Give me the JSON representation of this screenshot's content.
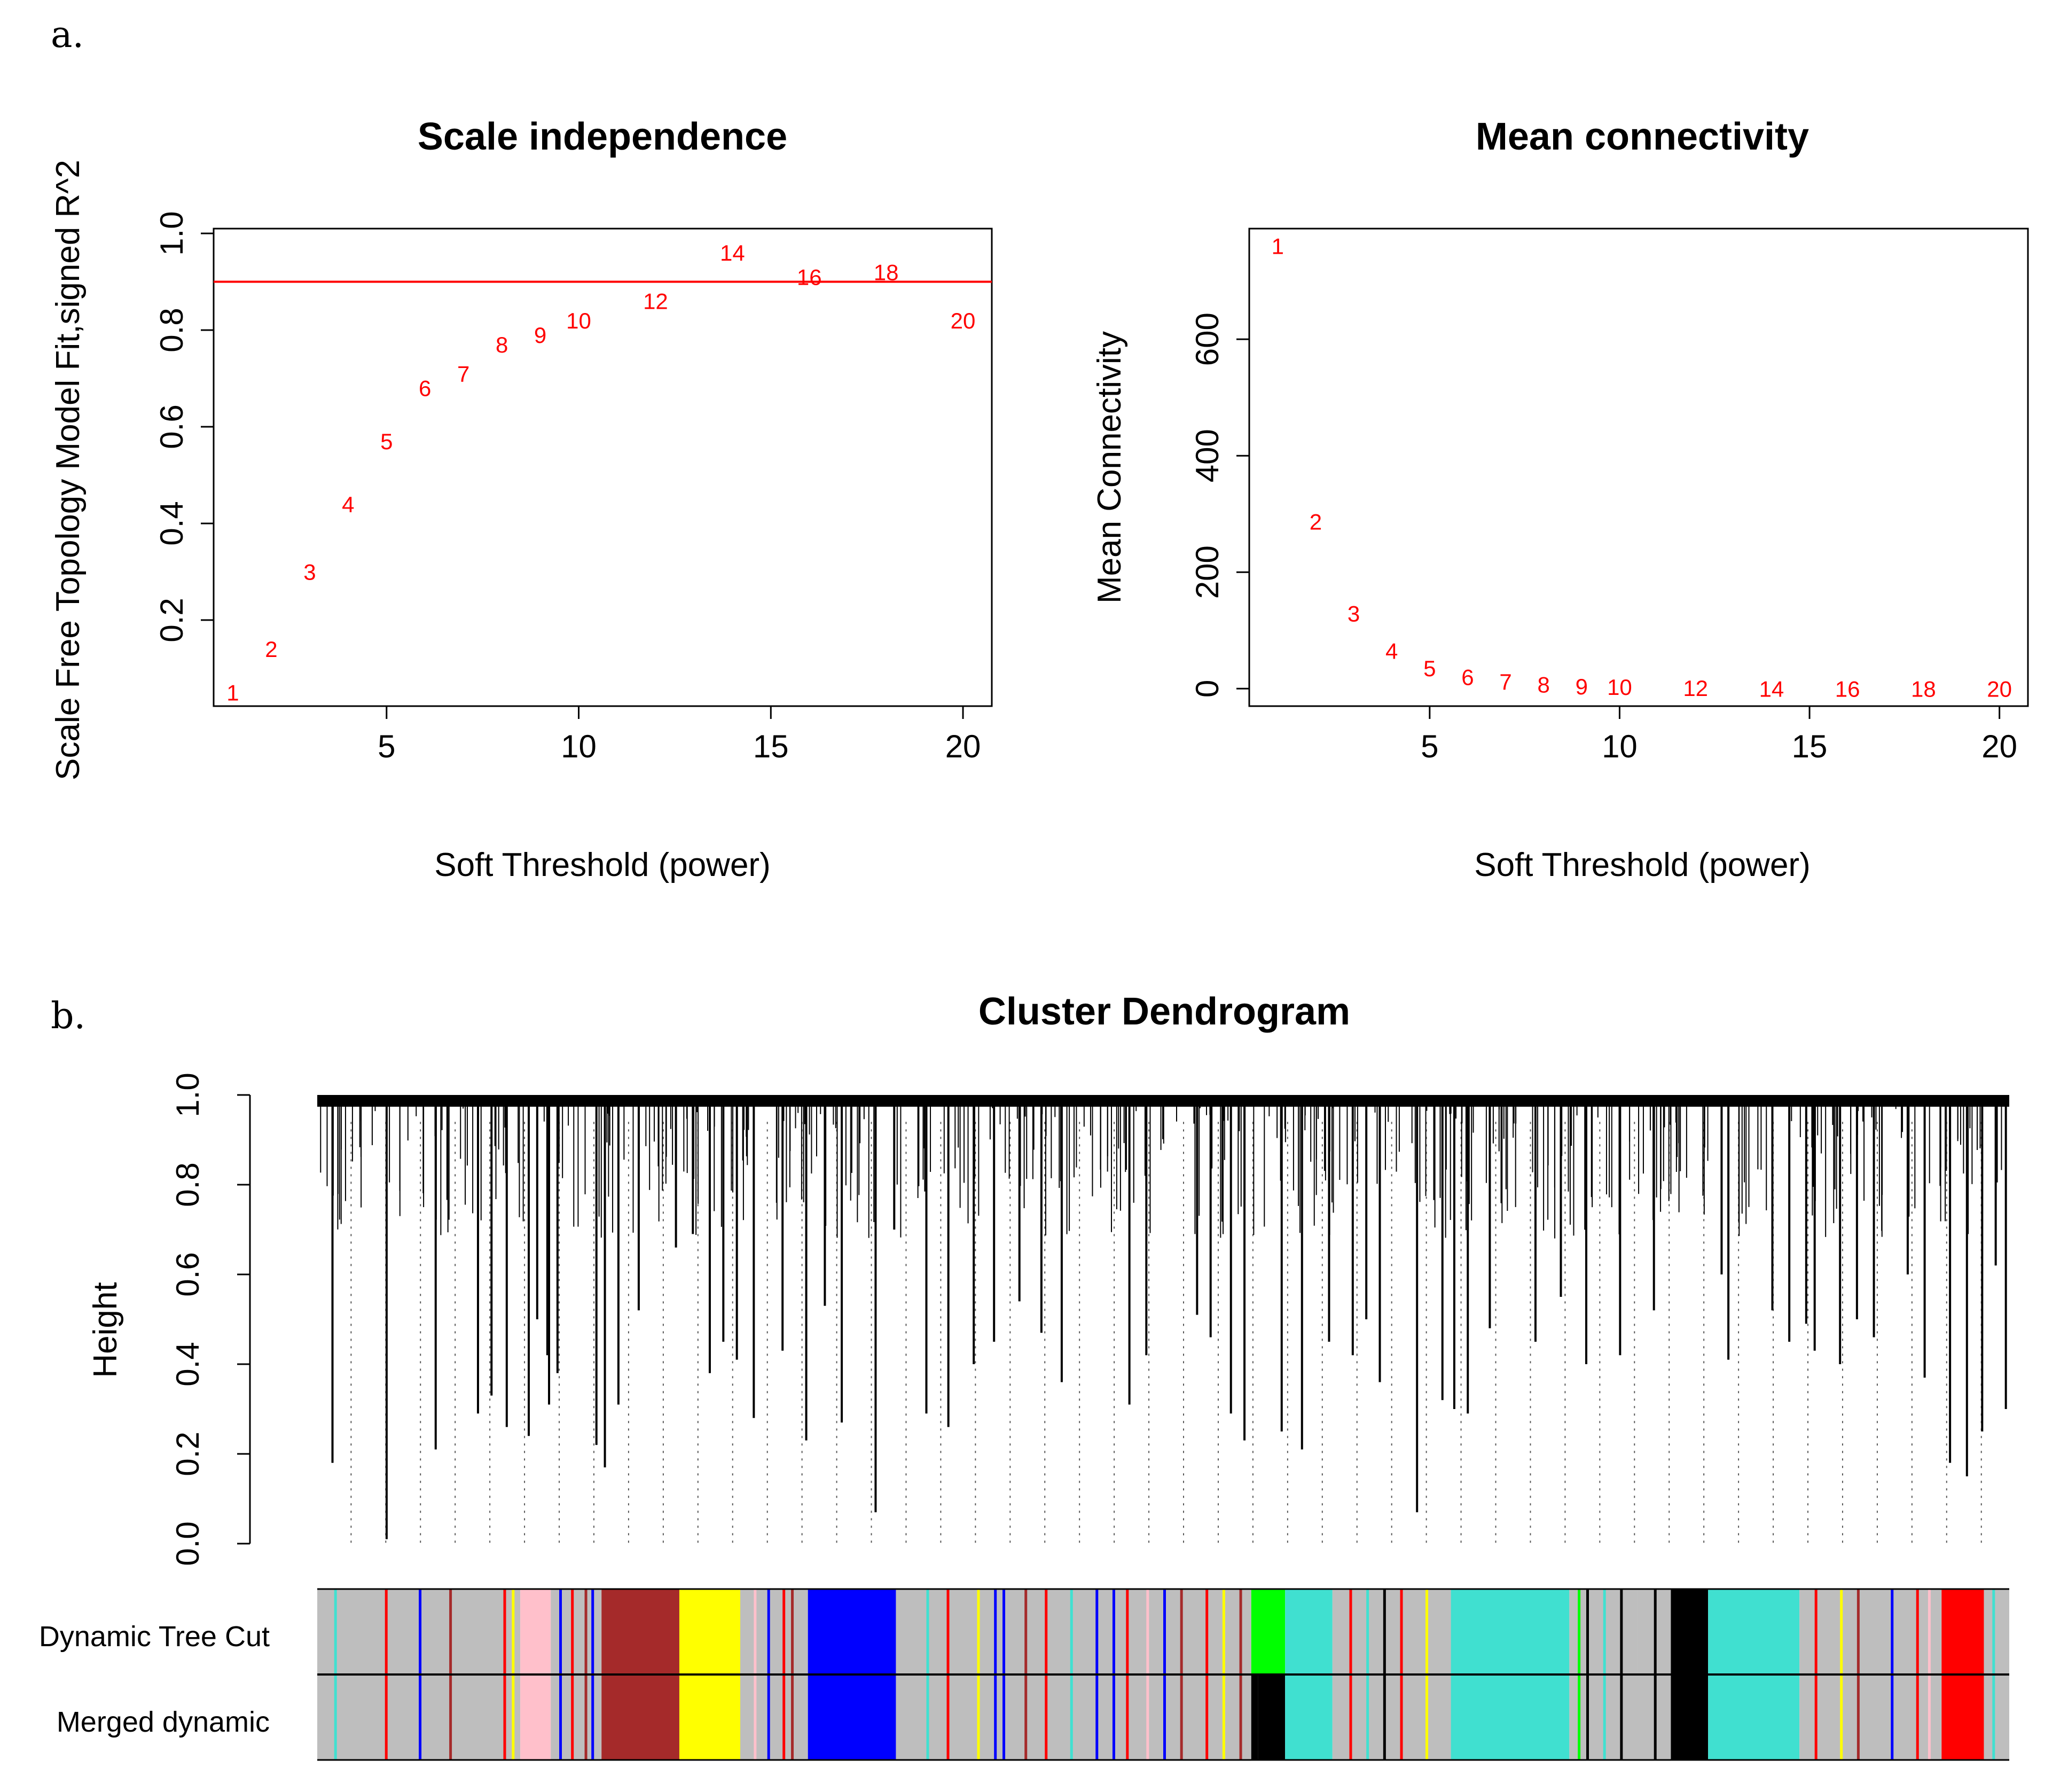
{
  "panel_labels": {
    "a": "a.",
    "b": "b."
  },
  "colors": {
    "axis": "#000000",
    "point_label": "#ff0000",
    "threshold_line": "#ff0000",
    "module_grey": "#bebebe",
    "module_pink": "#ffc0cb",
    "module_brown": "#a52a2a",
    "module_yellow": "#ffff00",
    "module_blue": "#0000ff",
    "module_green": "#00ff00",
    "module_turquoise": "#40e0d0",
    "module_black": "#000000",
    "module_red": "#ff0000"
  },
  "chart_data": [
    {
      "type": "scatter",
      "title": "Scale independence",
      "xlabel": "Soft Threshold (power)",
      "ylabel": "Scale Free Topology Model Fit,signed R^2",
      "xlim": [
        0.5,
        20.75
      ],
      "ylim": [
        0.022,
        1.01
      ],
      "xticks": [
        "5",
        "10",
        "15",
        "20"
      ],
      "yticks": [
        "0.2",
        "0.4",
        "0.6",
        "0.8",
        "1.0"
      ],
      "reference_line": {
        "y": 0.9,
        "color": "#ff0000"
      },
      "points": [
        {
          "x": 1,
          "y": 0.05,
          "label": "1"
        },
        {
          "x": 2,
          "y": 0.14,
          "label": "2"
        },
        {
          "x": 3,
          "y": 0.3,
          "label": "3"
        },
        {
          "x": 4,
          "y": 0.44,
          "label": "4"
        },
        {
          "x": 5,
          "y": 0.57,
          "label": "5"
        },
        {
          "x": 6,
          "y": 0.68,
          "label": "6"
        },
        {
          "x": 7,
          "y": 0.71,
          "label": "7"
        },
        {
          "x": 8,
          "y": 0.77,
          "label": "8"
        },
        {
          "x": 9,
          "y": 0.79,
          "label": "9"
        },
        {
          "x": 10,
          "y": 0.82,
          "label": "10"
        },
        {
          "x": 12,
          "y": 0.86,
          "label": "12"
        },
        {
          "x": 14,
          "y": 0.96,
          "label": "14"
        },
        {
          "x": 16,
          "y": 0.91,
          "label": "16"
        },
        {
          "x": 18,
          "y": 0.92,
          "label": "18"
        },
        {
          "x": 20,
          "y": 0.82,
          "label": "20"
        }
      ]
    },
    {
      "type": "scatter",
      "title": "Mean connectivity",
      "xlabel": "Soft Threshold (power)",
      "ylabel": "Mean Connectivity",
      "xlim": [
        0.25,
        20.75
      ],
      "ylim": [
        -30,
        790
      ],
      "xticks": [
        "5",
        "10",
        "15",
        "20"
      ],
      "yticks": [
        "0",
        "200",
        "400",
        "600"
      ],
      "points": [
        {
          "x": 1,
          "y": 760,
          "label": "1"
        },
        {
          "x": 2,
          "y": 287,
          "label": "2"
        },
        {
          "x": 3,
          "y": 129,
          "label": "3"
        },
        {
          "x": 4,
          "y": 65,
          "label": "4"
        },
        {
          "x": 5,
          "y": 35,
          "label": "5"
        },
        {
          "x": 6,
          "y": 20,
          "label": "6"
        },
        {
          "x": 7,
          "y": 12,
          "label": "7"
        },
        {
          "x": 8,
          "y": 7,
          "label": "8"
        },
        {
          "x": 9,
          "y": 4,
          "label": "9"
        },
        {
          "x": 10,
          "y": 3,
          "label": "10"
        },
        {
          "x": 12,
          "y": 1,
          "label": "12"
        },
        {
          "x": 14,
          "y": 0,
          "label": "14"
        },
        {
          "x": 16,
          "y": 0,
          "label": "16"
        },
        {
          "x": 18,
          "y": 0,
          "label": "18"
        },
        {
          "x": 20,
          "y": 0,
          "label": "20"
        }
      ]
    },
    {
      "type": "dendrogram",
      "title": "Cluster Dendrogram",
      "ylabel": "Height",
      "ylim": [
        0,
        1
      ],
      "yticks": [
        "0.0",
        "0.2",
        "0.4",
        "0.6",
        "0.8",
        "1.0"
      ],
      "color_rows": [
        "Dynamic Tree Cut",
        "Merged dynamic"
      ],
      "branches": [
        {
          "x": 0.009,
          "h": 0.18
        },
        {
          "x": 0.041,
          "h": 0.01
        },
        {
          "x": 0.07,
          "h": 0.21
        },
        {
          "x": 0.095,
          "h": 0.29
        },
        {
          "x": 0.103,
          "h": 0.33
        },
        {
          "x": 0.112,
          "h": 0.26
        },
        {
          "x": 0.125,
          "h": 0.24
        },
        {
          "x": 0.137,
          "h": 0.31
        },
        {
          "x": 0.13,
          "h": 0.5
        },
        {
          "x": 0.136,
          "h": 0.42
        },
        {
          "x": 0.142,
          "h": 0.38
        },
        {
          "x": 0.165,
          "h": 0.22
        },
        {
          "x": 0.17,
          "h": 0.17
        },
        {
          "x": 0.178,
          "h": 0.31
        },
        {
          "x": 0.19,
          "h": 0.52
        },
        {
          "x": 0.212,
          "h": 0.66
        },
        {
          "x": 0.222,
          "h": 0.69
        },
        {
          "x": 0.232,
          "h": 0.38
        },
        {
          "x": 0.24,
          "h": 0.45
        },
        {
          "x": 0.248,
          "h": 0.41
        },
        {
          "x": 0.258,
          "h": 0.28
        },
        {
          "x": 0.275,
          "h": 0.43
        },
        {
          "x": 0.289,
          "h": 0.23
        },
        {
          "x": 0.3,
          "h": 0.53
        },
        {
          "x": 0.31,
          "h": 0.27
        },
        {
          "x": 0.33,
          "h": 0.07
        },
        {
          "x": 0.341,
          "h": 0.7
        },
        {
          "x": 0.36,
          "h": 0.29
        },
        {
          "x": 0.373,
          "h": 0.26
        },
        {
          "x": 0.388,
          "h": 0.4
        },
        {
          "x": 0.4,
          "h": 0.45
        },
        {
          "x": 0.415,
          "h": 0.54
        },
        {
          "x": 0.428,
          "h": 0.47
        },
        {
          "x": 0.44,
          "h": 0.36
        },
        {
          "x": 0.48,
          "h": 0.31
        },
        {
          "x": 0.49,
          "h": 0.42
        },
        {
          "x": 0.52,
          "h": 0.51
        },
        {
          "x": 0.528,
          "h": 0.46
        },
        {
          "x": 0.54,
          "h": 0.29
        },
        {
          "x": 0.548,
          "h": 0.23
        },
        {
          "x": 0.57,
          "h": 0.25
        },
        {
          "x": 0.582,
          "h": 0.21
        },
        {
          "x": 0.598,
          "h": 0.45
        },
        {
          "x": 0.612,
          "h": 0.42
        },
        {
          "x": 0.62,
          "h": 0.5
        },
        {
          "x": 0.628,
          "h": 0.36
        },
        {
          "x": 0.65,
          "h": 0.07
        },
        {
          "x": 0.665,
          "h": 0.32
        },
        {
          "x": 0.672,
          "h": 0.3
        },
        {
          "x": 0.68,
          "h": 0.29
        },
        {
          "x": 0.693,
          "h": 0.48
        },
        {
          "x": 0.72,
          "h": 0.45
        },
        {
          "x": 0.735,
          "h": 0.55
        },
        {
          "x": 0.75,
          "h": 0.4
        },
        {
          "x": 0.77,
          "h": 0.42
        },
        {
          "x": 0.79,
          "h": 0.52
        },
        {
          "x": 0.83,
          "h": 0.6
        },
        {
          "x": 0.834,
          "h": 0.41
        },
        {
          "x": 0.86,
          "h": 0.52
        },
        {
          "x": 0.87,
          "h": 0.45
        },
        {
          "x": 0.88,
          "h": 0.49
        },
        {
          "x": 0.885,
          "h": 0.43
        },
        {
          "x": 0.9,
          "h": 0.4
        },
        {
          "x": 0.91,
          "h": 0.5
        },
        {
          "x": 0.92,
          "h": 0.46
        },
        {
          "x": 0.94,
          "h": 0.6
        },
        {
          "x": 0.95,
          "h": 0.37
        },
        {
          "x": 0.965,
          "h": 0.18
        },
        {
          "x": 0.975,
          "h": 0.15
        },
        {
          "x": 0.984,
          "h": 0.25
        },
        {
          "x": 0.992,
          "h": 0.62
        },
        {
          "x": 0.998,
          "h": 0.3
        }
      ],
      "dynamic_tree_cut": [
        {
          "start": 0.0,
          "end": 0.12,
          "color": "#bebebe"
        },
        {
          "start": 0.12,
          "end": 0.138,
          "color": "#ffc0cb"
        },
        {
          "start": 0.138,
          "end": 0.168,
          "color": "#bebebe"
        },
        {
          "start": 0.168,
          "end": 0.214,
          "color": "#a52a2a"
        },
        {
          "start": 0.214,
          "end": 0.25,
          "color": "#ffff00"
        },
        {
          "start": 0.25,
          "end": 0.29,
          "color": "#bebebe"
        },
        {
          "start": 0.29,
          "end": 0.342,
          "color": "#0000ff"
        },
        {
          "start": 0.342,
          "end": 0.552,
          "color": "#bebebe"
        },
        {
          "start": 0.552,
          "end": 0.572,
          "color": "#00ff00"
        },
        {
          "start": 0.572,
          "end": 0.6,
          "color": "#40e0d0"
        },
        {
          "start": 0.6,
          "end": 0.67,
          "color": "#bebebe"
        },
        {
          "start": 0.67,
          "end": 0.74,
          "color": "#40e0d0"
        },
        {
          "start": 0.74,
          "end": 0.78,
          "color": "#bebebe"
        },
        {
          "start": 0.78,
          "end": 0.8,
          "color": "#bebebe"
        },
        {
          "start": 0.8,
          "end": 0.822,
          "color": "#000000"
        },
        {
          "start": 0.822,
          "end": 0.876,
          "color": "#40e0d0"
        },
        {
          "start": 0.876,
          "end": 0.96,
          "color": "#bebebe"
        },
        {
          "start": 0.96,
          "end": 0.985,
          "color": "#ff0000"
        },
        {
          "start": 0.985,
          "end": 1.0,
          "color": "#bebebe"
        }
      ],
      "merged_dynamic": [
        {
          "start": 0.0,
          "end": 0.12,
          "color": "#bebebe"
        },
        {
          "start": 0.12,
          "end": 0.138,
          "color": "#ffc0cb"
        },
        {
          "start": 0.138,
          "end": 0.168,
          "color": "#bebebe"
        },
        {
          "start": 0.168,
          "end": 0.214,
          "color": "#a52a2a"
        },
        {
          "start": 0.214,
          "end": 0.25,
          "color": "#ffff00"
        },
        {
          "start": 0.25,
          "end": 0.29,
          "color": "#bebebe"
        },
        {
          "start": 0.29,
          "end": 0.342,
          "color": "#0000ff"
        },
        {
          "start": 0.342,
          "end": 0.552,
          "color": "#bebebe"
        },
        {
          "start": 0.552,
          "end": 0.556,
          "color": "#000000"
        },
        {
          "start": 0.556,
          "end": 0.572,
          "color": "#000000"
        },
        {
          "start": 0.572,
          "end": 0.6,
          "color": "#40e0d0"
        },
        {
          "start": 0.6,
          "end": 0.67,
          "color": "#bebebe"
        },
        {
          "start": 0.67,
          "end": 0.74,
          "color": "#40e0d0"
        },
        {
          "start": 0.74,
          "end": 0.8,
          "color": "#bebebe"
        },
        {
          "start": 0.8,
          "end": 0.822,
          "color": "#000000"
        },
        {
          "start": 0.822,
          "end": 0.876,
          "color": "#40e0d0"
        },
        {
          "start": 0.876,
          "end": 0.96,
          "color": "#bebebe"
        },
        {
          "start": 0.96,
          "end": 0.985,
          "color": "#ff0000"
        },
        {
          "start": 0.985,
          "end": 1.0,
          "color": "#bebebe"
        }
      ],
      "thin_stripes": [
        {
          "x": 0.01,
          "color": "#40e0d0"
        },
        {
          "x": 0.04,
          "color": "#ff0000"
        },
        {
          "x": 0.06,
          "color": "#0000ff"
        },
        {
          "x": 0.078,
          "color": "#a52a2a"
        },
        {
          "x": 0.11,
          "color": "#ff0000"
        },
        {
          "x": 0.115,
          "color": "#ffff00"
        },
        {
          "x": 0.143,
          "color": "#0000ff"
        },
        {
          "x": 0.15,
          "color": "#ff0000"
        },
        {
          "x": 0.158,
          "color": "#a52a2a"
        },
        {
          "x": 0.162,
          "color": "#0000ff"
        },
        {
          "x": 0.258,
          "color": "#ffc0cb"
        },
        {
          "x": 0.266,
          "color": "#0000ff"
        },
        {
          "x": 0.275,
          "color": "#ff0000"
        },
        {
          "x": 0.28,
          "color": "#a52a2a"
        },
        {
          "x": 0.36,
          "color": "#40e0d0"
        },
        {
          "x": 0.372,
          "color": "#ff0000"
        },
        {
          "x": 0.39,
          "color": "#ffff00"
        },
        {
          "x": 0.4,
          "color": "#0000ff"
        },
        {
          "x": 0.405,
          "color": "#0000ff"
        },
        {
          "x": 0.418,
          "color": "#a52a2a"
        },
        {
          "x": 0.43,
          "color": "#ff0000"
        },
        {
          "x": 0.445,
          "color": "#40e0d0"
        },
        {
          "x": 0.46,
          "color": "#0000ff"
        },
        {
          "x": 0.47,
          "color": "#0000ff"
        },
        {
          "x": 0.478,
          "color": "#ff0000"
        },
        {
          "x": 0.49,
          "color": "#ffc0cb"
        },
        {
          "x": 0.5,
          "color": "#0000ff"
        },
        {
          "x": 0.51,
          "color": "#a52a2a"
        },
        {
          "x": 0.525,
          "color": "#ff0000"
        },
        {
          "x": 0.535,
          "color": "#ffff00"
        },
        {
          "x": 0.545,
          "color": "#a52a2a"
        },
        {
          "x": 0.61,
          "color": "#ff0000"
        },
        {
          "x": 0.62,
          "color": "#40e0d0"
        },
        {
          "x": 0.63,
          "color": "#000000"
        },
        {
          "x": 0.64,
          "color": "#ff0000"
        },
        {
          "x": 0.655,
          "color": "#ffff00"
        },
        {
          "x": 0.745,
          "color": "#00ff00"
        },
        {
          "x": 0.75,
          "color": "#000000"
        },
        {
          "x": 0.76,
          "color": "#40e0d0"
        },
        {
          "x": 0.77,
          "color": "#000000"
        },
        {
          "x": 0.79,
          "color": "#000000"
        },
        {
          "x": 0.885,
          "color": "#ff0000"
        },
        {
          "x": 0.9,
          "color": "#ffff00"
        },
        {
          "x": 0.91,
          "color": "#a52a2a"
        },
        {
          "x": 0.93,
          "color": "#0000ff"
        },
        {
          "x": 0.945,
          "color": "#ff0000"
        },
        {
          "x": 0.952,
          "color": "#ffc0cb"
        },
        {
          "x": 0.99,
          "color": "#40e0d0"
        }
      ]
    }
  ]
}
